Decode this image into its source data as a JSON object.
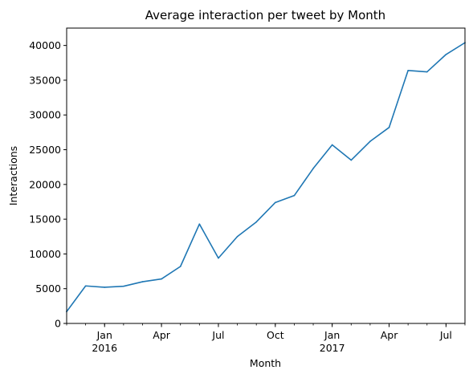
{
  "chart_data": {
    "type": "line",
    "title": "Average interaction per tweet by Month",
    "xlabel": "Month",
    "ylabel": "Interactions",
    "ylim": [
      0,
      42500
    ],
    "x_range": [
      "2015-11",
      "2017-08"
    ],
    "grid": false,
    "y_ticks": [
      0,
      5000,
      10000,
      15000,
      20000,
      25000,
      30000,
      35000,
      40000
    ],
    "x_ticks": [
      {
        "month": "2016-01",
        "label": "Jan",
        "year": "2016"
      },
      {
        "month": "2016-04",
        "label": "Apr",
        "year": ""
      },
      {
        "month": "2016-07",
        "label": "Jul",
        "year": ""
      },
      {
        "month": "2016-10",
        "label": "Oct",
        "year": ""
      },
      {
        "month": "2017-01",
        "label": "Jan",
        "year": "2017"
      },
      {
        "month": "2017-04",
        "label": "Apr",
        "year": ""
      },
      {
        "month": "2017-07",
        "label": "Jul",
        "year": ""
      }
    ],
    "series": [
      {
        "name": "Interactions",
        "color": "#1f77b4",
        "x": [
          "2015-11",
          "2015-12",
          "2016-01",
          "2016-02",
          "2016-03",
          "2016-04",
          "2016-05",
          "2016-06",
          "2016-07",
          "2016-08",
          "2016-09",
          "2016-10",
          "2016-11",
          "2016-12",
          "2017-01",
          "2017-02",
          "2017-03",
          "2017-04",
          "2017-05",
          "2017-06",
          "2017-07",
          "2017-08"
        ],
        "values": [
          1700,
          5400,
          5200,
          5350,
          6000,
          6400,
          8200,
          14300,
          9400,
          12500,
          14600,
          17400,
          18400,
          22300,
          25700,
          23500,
          26200,
          28200,
          36400,
          36200,
          38700,
          40400
        ]
      }
    ]
  }
}
